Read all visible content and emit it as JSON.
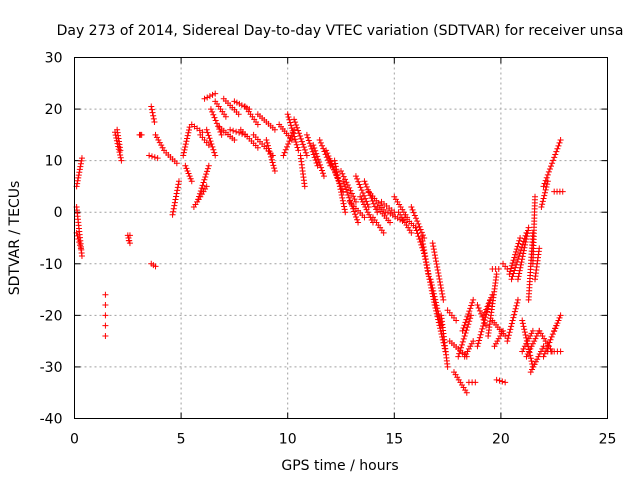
{
  "chart_data": {
    "type": "scatter",
    "title": "Day 273 of 2014, Sidereal Day-to-day VTEC variation (SDTVAR) for receiver unsa",
    "xlabel": "GPS time / hours",
    "ylabel": "SDTVAR / TECUs",
    "xlim": [
      0,
      25
    ],
    "ylim": [
      -40,
      30
    ],
    "xticks": [
      "0",
      "5",
      "10",
      "15",
      "20",
      "25"
    ],
    "yticks": [
      "-40",
      "-30",
      "-20",
      "-10",
      "0",
      "10",
      "20",
      "30"
    ],
    "grid": true,
    "marker": "+",
    "colors": {
      "series": "#ff0000",
      "axes": "#000000",
      "grid": "#a0a0a0"
    },
    "segments": [
      [
        [
          0.1,
          5
        ],
        [
          0.35,
          10.5
        ]
      ],
      [
        [
          0.1,
          1
        ],
        [
          0.35,
          -8.5
        ]
      ],
      [
        [
          0.1,
          -4
        ],
        [
          0.3,
          -7
        ]
      ],
      [
        [
          1.9,
          15.5
        ],
        [
          2.2,
          10
        ]
      ],
      [
        [
          2.0,
          16
        ],
        [
          2.15,
          12
        ]
      ],
      [
        [
          2.5,
          -4.5
        ],
        [
          2.6,
          -6
        ]
      ],
      [
        [
          3.05,
          15
        ],
        [
          3.15,
          15
        ]
      ],
      [
        [
          3.6,
          20.5
        ],
        [
          3.75,
          17.5
        ]
      ],
      [
        [
          3.5,
          11
        ],
        [
          3.9,
          10.5
        ]
      ],
      [
        [
          3.6,
          -10
        ],
        [
          3.8,
          -10.5
        ]
      ],
      [
        [
          3.8,
          15
        ],
        [
          4.2,
          12
        ]
      ],
      [
        [
          4.3,
          11.5
        ],
        [
          4.8,
          9.5
        ]
      ],
      [
        [
          4.6,
          -0.5
        ],
        [
          4.9,
          6
        ]
      ],
      [
        [
          5.1,
          11
        ],
        [
          5.4,
          16.5
        ]
      ],
      [
        [
          5.2,
          9
        ],
        [
          5.5,
          6
        ]
      ],
      [
        [
          5.5,
          17
        ],
        [
          6.0,
          15.5
        ]
      ],
      [
        [
          5.6,
          1
        ],
        [
          6.2,
          5
        ]
      ],
      [
        [
          5.8,
          2.5
        ],
        [
          6.3,
          9
        ]
      ],
      [
        [
          5.9,
          15
        ],
        [
          6.3,
          13
        ]
      ],
      [
        [
          6.1,
          22
        ],
        [
          6.6,
          23
        ]
      ],
      [
        [
          6.2,
          16
        ],
        [
          6.6,
          11
        ]
      ],
      [
        [
          6.4,
          20
        ],
        [
          6.9,
          15
        ]
      ],
      [
        [
          6.6,
          21.5
        ],
        [
          7.1,
          18.5
        ]
      ],
      [
        [
          6.8,
          16.5
        ],
        [
          7.5,
          14
        ]
      ],
      [
        [
          7.0,
          22
        ],
        [
          7.7,
          19
        ]
      ],
      [
        [
          7.3,
          16
        ],
        [
          8.0,
          15
        ]
      ],
      [
        [
          7.5,
          21.5
        ],
        [
          8.2,
          20
        ]
      ],
      [
        [
          7.8,
          16
        ],
        [
          8.6,
          12.5
        ]
      ],
      [
        [
          8.0,
          20.5
        ],
        [
          8.6,
          17
        ]
      ],
      [
        [
          8.4,
          15
        ],
        [
          9.3,
          11
        ]
      ],
      [
        [
          8.6,
          19
        ],
        [
          9.4,
          16
        ]
      ],
      [
        [
          9.0,
          14
        ],
        [
          9.4,
          8
        ]
      ],
      [
        [
          9.6,
          17
        ],
        [
          10.2,
          14
        ]
      ],
      [
        [
          9.8,
          11
        ],
        [
          10.3,
          16
        ]
      ],
      [
        [
          10.0,
          19
        ],
        [
          10.5,
          12
        ]
      ],
      [
        [
          10.3,
          18
        ],
        [
          10.9,
          11
        ]
      ],
      [
        [
          10.6,
          11
        ],
        [
          10.8,
          5
        ]
      ],
      [
        [
          10.9,
          15
        ],
        [
          11.4,
          9
        ]
      ],
      [
        [
          11.2,
          13
        ],
        [
          11.7,
          7
        ]
      ],
      [
        [
          11.5,
          14
        ],
        [
          12.0,
          9
        ]
      ],
      [
        [
          11.8,
          12
        ],
        [
          12.4,
          6
        ]
      ],
      [
        [
          12.0,
          10
        ],
        [
          12.6,
          4
        ]
      ],
      [
        [
          12.2,
          10
        ],
        [
          12.7,
          0
        ]
      ],
      [
        [
          12.5,
          8
        ],
        [
          13.2,
          2
        ]
      ],
      [
        [
          12.6,
          6
        ],
        [
          13.3,
          -2
        ]
      ],
      [
        [
          12.9,
          2
        ],
        [
          13.6,
          -1
        ]
      ],
      [
        [
          13.2,
          7
        ],
        [
          13.8,
          1
        ]
      ],
      [
        [
          13.4,
          3
        ],
        [
          14.0,
          -2
        ]
      ],
      [
        [
          13.6,
          6
        ],
        [
          14.2,
          0
        ]
      ],
      [
        [
          13.8,
          4
        ],
        [
          14.6,
          0
        ]
      ],
      [
        [
          14.0,
          -1
        ],
        [
          14.5,
          -4
        ]
      ],
      [
        [
          14.2,
          1
        ],
        [
          14.8,
          -2
        ]
      ],
      [
        [
          14.4,
          2
        ],
        [
          15.0,
          0
        ]
      ],
      [
        [
          14.7,
          0
        ],
        [
          15.5,
          -2
        ]
      ],
      [
        [
          15.0,
          3
        ],
        [
          15.6,
          -1
        ]
      ],
      [
        [
          15.2,
          0
        ],
        [
          15.8,
          -4
        ]
      ],
      [
        [
          15.5,
          -1
        ],
        [
          16.0,
          -3
        ]
      ],
      [
        [
          15.8,
          1
        ],
        [
          16.4,
          -5
        ]
      ],
      [
        [
          16.0,
          -3
        ],
        [
          16.4,
          -8
        ]
      ],
      [
        [
          16.3,
          -5
        ],
        [
          16.6,
          -12
        ]
      ],
      [
        [
          16.4,
          -8
        ],
        [
          16.9,
          -18
        ]
      ],
      [
        [
          16.7,
          -13
        ],
        [
          17.2,
          -22
        ]
      ],
      [
        [
          16.8,
          -6
        ],
        [
          17.3,
          -17
        ]
      ],
      [
        [
          16.9,
          -18
        ],
        [
          17.4,
          -27
        ]
      ],
      [
        [
          17.2,
          -20
        ],
        [
          17.5,
          -30
        ]
      ],
      [
        [
          17.5,
          -19
        ],
        [
          17.9,
          -21
        ]
      ],
      [
        [
          17.6,
          -25
        ],
        [
          18.4,
          -28
        ]
      ],
      [
        [
          17.8,
          -31
        ],
        [
          18.4,
          -35
        ]
      ],
      [
        [
          18.0,
          -28
        ],
        [
          18.6,
          -20
        ]
      ],
      [
        [
          18.2,
          -23
        ],
        [
          18.7,
          -17
        ]
      ],
      [
        [
          18.3,
          -28
        ],
        [
          18.7,
          -25
        ]
      ],
      [
        [
          18.5,
          -33
        ],
        [
          18.8,
          -33
        ]
      ],
      [
        [
          18.9,
          -18
        ],
        [
          19.3,
          -22
        ]
      ],
      [
        [
          18.9,
          -26
        ],
        [
          19.5,
          -17
        ]
      ],
      [
        [
          19.2,
          -20
        ],
        [
          19.6,
          -16
        ]
      ],
      [
        [
          19.4,
          -24
        ],
        [
          19.8,
          -12
        ]
      ],
      [
        [
          19.6,
          -11
        ],
        [
          19.9,
          -11
        ]
      ],
      [
        [
          19.6,
          -21
        ],
        [
          20.2,
          -24
        ]
      ],
      [
        [
          19.8,
          -32.5
        ],
        [
          20.2,
          -33
        ]
      ],
      [
        [
          19.7,
          -26
        ],
        [
          20.1,
          -23
        ]
      ],
      [
        [
          20.1,
          -10
        ],
        [
          20.3,
          -11
        ]
      ],
      [
        [
          20.3,
          -25
        ],
        [
          20.8,
          -17
        ]
      ],
      [
        [
          20.4,
          -12
        ],
        [
          20.9,
          -5
        ]
      ],
      [
        [
          20.5,
          -13
        ],
        [
          21.2,
          -4
        ]
      ],
      [
        [
          20.8,
          -13
        ],
        [
          21.3,
          -3
        ]
      ],
      [
        [
          21.0,
          -21
        ],
        [
          21.5,
          -30
        ]
      ],
      [
        [
          21.0,
          -27
        ],
        [
          21.5,
          -23
        ]
      ],
      [
        [
          21.2,
          -28
        ],
        [
          21.8,
          -23
        ]
      ],
      [
        [
          21.4,
          -31
        ],
        [
          22.0,
          -26
        ]
      ],
      [
        [
          21.5,
          -10
        ],
        [
          21.6,
          3
        ]
      ],
      [
        [
          21.3,
          -17
        ],
        [
          21.5,
          -4
        ]
      ],
      [
        [
          21.6,
          -13
        ],
        [
          21.8,
          -7
        ]
      ],
      [
        [
          21.8,
          -23
        ],
        [
          22.4,
          -27
        ]
      ],
      [
        [
          22.0,
          -28
        ],
        [
          22.6,
          -22
        ]
      ],
      [
        [
          22.2,
          -27
        ],
        [
          22.8,
          -27
        ]
      ],
      [
        [
          22.5,
          -23
        ],
        [
          22.8,
          -20
        ]
      ],
      [
        [
          21.9,
          1
        ],
        [
          22.2,
          6
        ]
      ],
      [
        [
          22.0,
          5
        ],
        [
          22.8,
          14
        ]
      ],
      [
        [
          22.5,
          4
        ],
        [
          22.9,
          4
        ]
      ]
    ],
    "points": [
      [
        1.45,
        -16
      ],
      [
        1.45,
        -18
      ],
      [
        1.45,
        -20
      ],
      [
        1.45,
        -22
      ],
      [
        1.45,
        -24
      ],
      [
        2.55,
        -5.5
      ],
      [
        2.6,
        -4.5
      ]
    ]
  }
}
